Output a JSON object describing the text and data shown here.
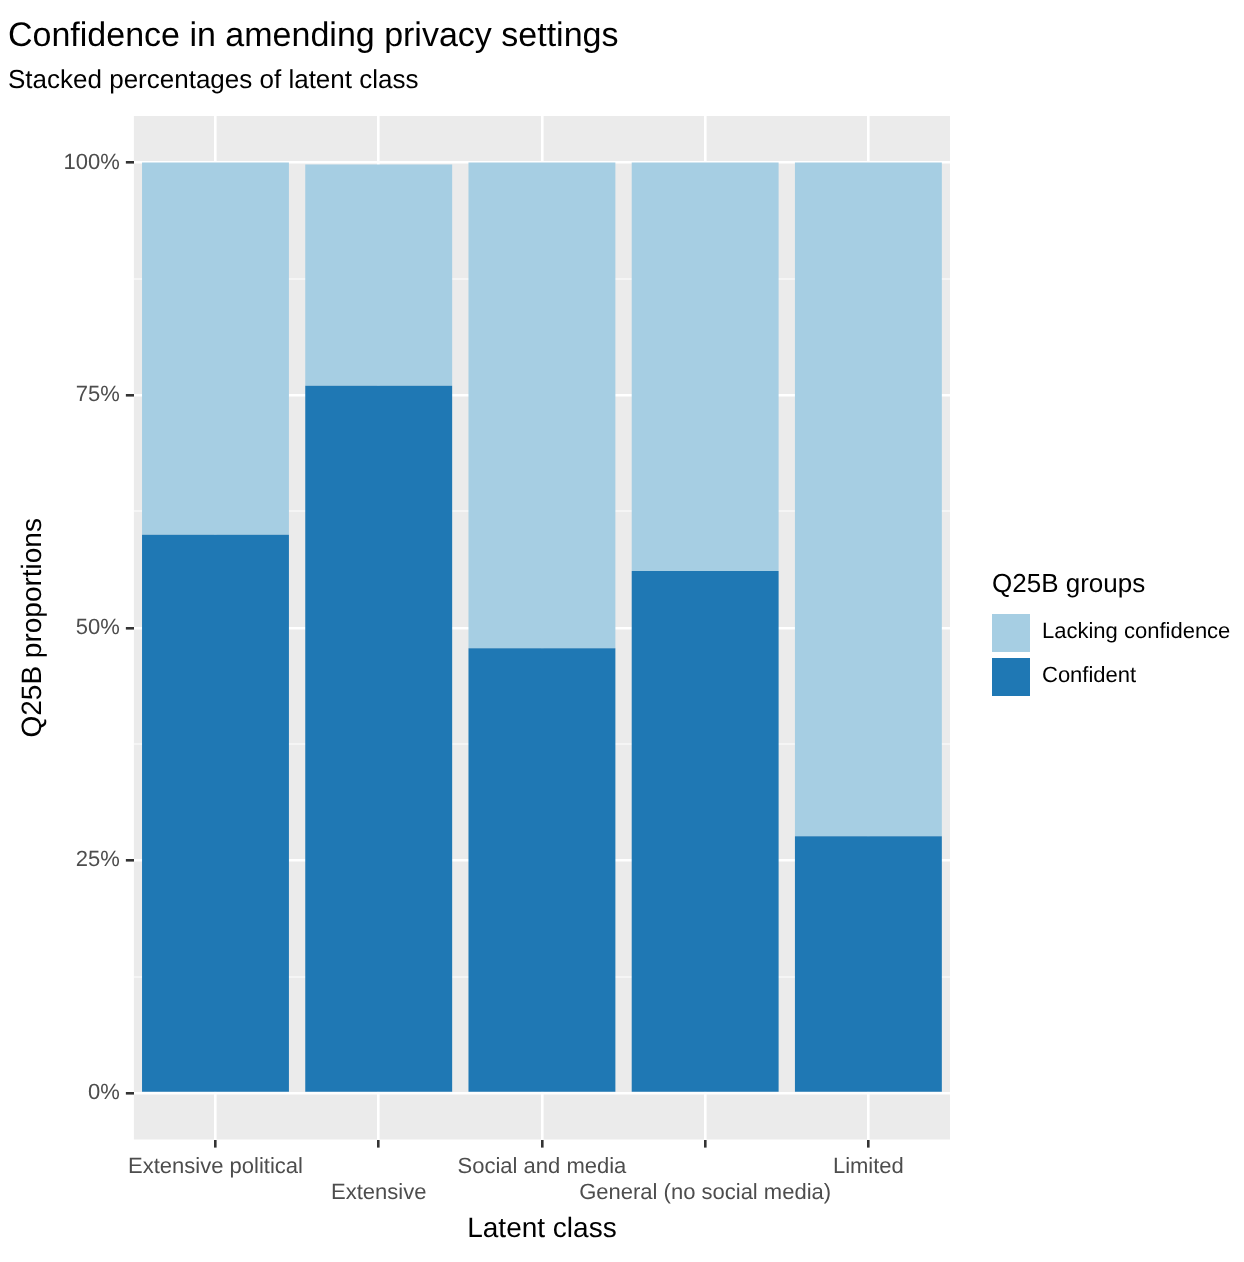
{
  "chart_data": {
    "type": "bar",
    "title": "Confidence in amending privacy settings",
    "subtitle": "Stacked percentages of latent class",
    "xlabel": "Latent class",
    "ylabel": "Q25B proportions",
    "legend_title": "Q25B groups",
    "categories": [
      "Extensive political",
      "Extensive",
      "Social and media",
      "General (no social media)",
      "Limited"
    ],
    "stacked": true,
    "series": [
      {
        "name": "Confident",
        "color": "#1f78b4",
        "values": [
          60.0,
          76.0,
          47.8,
          56.1,
          27.6
        ]
      },
      {
        "name": "Lacking confidence",
        "color": "#a6cee3",
        "values": [
          40.0,
          23.8,
          52.2,
          43.9,
          72.4
        ]
      }
    ],
    "ylim": [
      -5,
      105
    ],
    "yticks": [
      {
        "value": 0,
        "label": "0%"
      },
      {
        "value": 12.5,
        "label": null
      },
      {
        "value": 25,
        "label": "25%"
      },
      {
        "value": 37.5,
        "label": null
      },
      {
        "value": 50,
        "label": "50%"
      },
      {
        "value": 62.5,
        "label": null
      },
      {
        "value": 75,
        "label": "75%"
      },
      {
        "value": 87.5,
        "label": null
      },
      {
        "value": 100,
        "label": "100%"
      }
    ],
    "grid": true,
    "legend": "right"
  }
}
